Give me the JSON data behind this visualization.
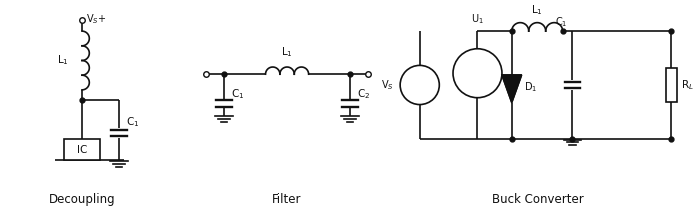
{
  "bg_color": "#ffffff",
  "line_color": "#111111",
  "title_decoupling": "Decoupling",
  "title_filter": "Filter",
  "title_buck": "Buck Converter",
  "label_L1": "L$_1$",
  "label_C1": "C$_1$",
  "label_C2": "C$_2$",
  "label_IC": "IC",
  "label_Vs_plus": "V$_S$+",
  "label_U1": "U$_1$",
  "label_D1": "D$_1$",
  "label_RL": "R$_L$",
  "label_Vs": "V$_S$"
}
